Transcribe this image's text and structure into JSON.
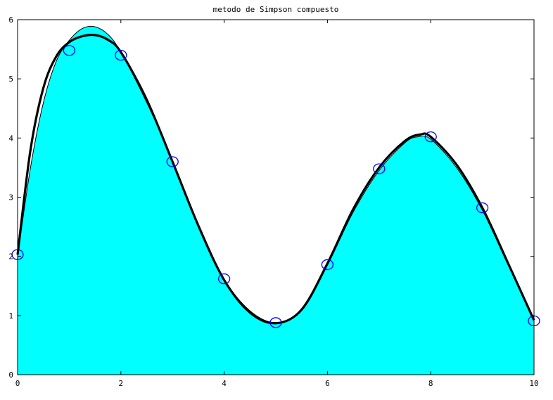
{
  "chart_data": {
    "type": "area",
    "title": "metodo de Simpson compuesto",
    "xlabel": "",
    "ylabel": "",
    "xlim": [
      0,
      10
    ],
    "ylim": [
      0,
      6
    ],
    "x_ticks": [
      0,
      2,
      4,
      6,
      8,
      10
    ],
    "y_ticks": [
      0,
      1,
      2,
      3,
      4,
      5,
      6
    ],
    "grid": false,
    "legend": "none",
    "colors": {
      "fill": "#00ffff",
      "line": "#000000",
      "marker": "#0000ff"
    },
    "series": [
      {
        "kind": "area",
        "x": [
          0,
          0.25,
          0.5,
          0.75,
          1,
          1.25,
          1.5,
          1.75,
          2,
          2.5,
          3,
          3.5,
          4,
          4.5,
          5,
          5.5,
          6,
          6.5,
          7,
          7.5,
          7.75,
          8,
          8.5,
          9,
          9.5,
          10
        ],
        "values": [
          2.0,
          3.5,
          4.6,
          5.3,
          5.65,
          5.85,
          5.88,
          5.75,
          5.45,
          4.6,
          3.62,
          2.55,
          1.62,
          1.08,
          0.88,
          1.08,
          1.85,
          2.75,
          3.45,
          3.92,
          4.02,
          3.98,
          3.5,
          2.78,
          1.85,
          0.92
        ]
      },
      {
        "kind": "line",
        "x": [
          0,
          0.25,
          0.5,
          0.75,
          1,
          1.25,
          1.5,
          1.75,
          2,
          2.5,
          3,
          3.5,
          4,
          4.5,
          5,
          5.5,
          6,
          6.5,
          7,
          7.5,
          7.8,
          8,
          8.5,
          9,
          9.5,
          10
        ],
        "values": [
          2.03,
          3.8,
          4.85,
          5.38,
          5.62,
          5.72,
          5.74,
          5.66,
          5.45,
          4.65,
          3.6,
          2.52,
          1.6,
          1.05,
          0.87,
          1.1,
          1.88,
          2.8,
          3.5,
          3.95,
          4.06,
          4.02,
          3.55,
          2.82,
          1.88,
          0.92
        ]
      },
      {
        "kind": "scatter",
        "x": [
          0,
          1,
          2,
          3,
          4,
          5,
          6,
          7,
          8,
          9,
          10
        ],
        "values": [
          2.03,
          5.48,
          5.4,
          3.6,
          1.62,
          0.88,
          1.86,
          3.48,
          4.02,
          2.82,
          0.91
        ]
      }
    ]
  }
}
